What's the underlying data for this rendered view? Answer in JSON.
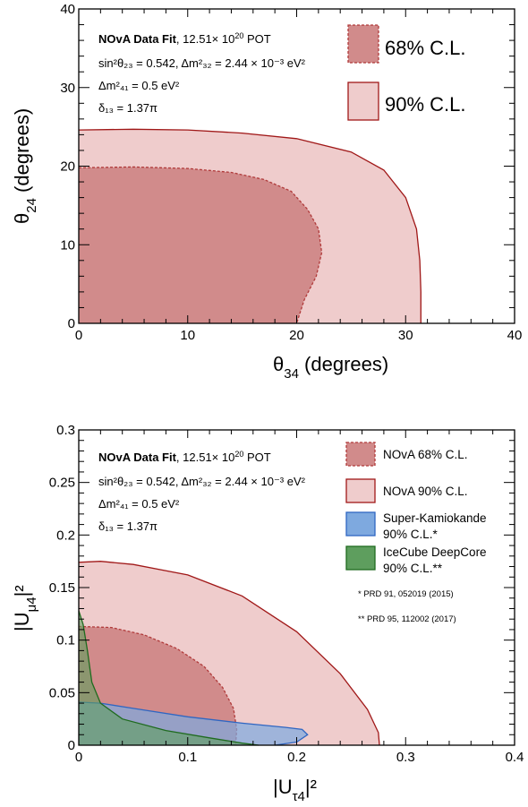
{
  "top": {
    "ann_title_bold": "NOvA Data Fit",
    "ann_title_rest": ", 12.51× 10",
    "ann_title_exp": "20",
    "ann_title_end": " POT",
    "ann_line2": "sin²θ₂₃ = 0.542, Δm²₃₂ = 2.44 × 10⁻³ eV²",
    "ann_line3": "Δm²₄₁ = 0.5 eV²",
    "ann_line4": "δ₁₃ = 1.37π",
    "legend_68": "68% C.L.",
    "legend_90": "90% C.L.",
    "xlabel_main": "θ",
    "xlabel_sub": "34",
    "xlabel_tail": " (degrees)",
    "ylabel_main": "θ",
    "ylabel_sub": "24",
    "ylabel_tail": " (degrees)"
  },
  "bottom": {
    "ann_title_bold": "NOvA Data Fit",
    "ann_title_rest": ", 12.51× 10",
    "ann_title_exp": "20",
    "ann_title_end": " POT",
    "ann_line2": "sin²θ₂₃ = 0.542, Δm²₃₂ = 2.44 × 10⁻³ eV²",
    "ann_line3": "Δm²₄₁ = 0.5 eV²",
    "ann_line4": "δ₁₃ = 1.37π",
    "legend_nova68": "NOvA 68% C.L.",
    "legend_nova90": "NOvA 90% C.L.",
    "legend_sk_1": "Super-Kamiokande",
    "legend_sk_2": "90% C.L.*",
    "legend_ic_1": "IceCube DeepCore",
    "legend_ic_2": "90% C.L.**",
    "ref1": "* PRD 91, 052019 (2015)",
    "ref2": "** PRD 95, 112002 (2017)",
    "xlabel_main": "|U",
    "xlabel_sub": "τ4",
    "xlabel_tail": "|²",
    "ylabel_main": "|U",
    "ylabel_sub": "μ4",
    "ylabel_tail": "|²"
  },
  "colors": {
    "nova68_fill": "#d18b8b",
    "nova68_line": "#b03a3a",
    "nova90_fill": "#efcccc",
    "nova90_line": "#a01818",
    "sk_fill": "#7ea9df",
    "sk_line": "#2f66c2",
    "ic_fill": "#5e9e5e",
    "ic_line": "#1f6b1f"
  },
  "chart_data": [
    {
      "type": "area",
      "xlabel": "θ34 (degrees)",
      "ylabel": "θ24 (degrees)",
      "xlim": [
        0,
        40
      ],
      "ylim": [
        0,
        40
      ],
      "xticks": [
        "0",
        "10",
        "20",
        "30",
        "40"
      ],
      "yticks": [
        "0",
        "10",
        "20",
        "30",
        "40"
      ],
      "series": [
        {
          "name": "90% C.L.",
          "x": [
            0,
            5,
            10,
            15,
            20,
            25,
            28,
            30,
            31,
            31.3,
            31.4,
            31.4
          ],
          "y": [
            24.6,
            24.7,
            24.6,
            24.2,
            23.5,
            21.8,
            19.5,
            16.0,
            12.0,
            8.0,
            4.0,
            0
          ]
        },
        {
          "name": "68% C.L.",
          "x": [
            0,
            5,
            10,
            14,
            17,
            19.5,
            21.0,
            22.0,
            22.3,
            21.8,
            20.7,
            20.0
          ],
          "y": [
            19.8,
            19.9,
            19.7,
            19.2,
            18.3,
            16.8,
            14.5,
            12.0,
            9.0,
            6.0,
            3.0,
            0
          ]
        }
      ]
    },
    {
      "type": "area",
      "xlabel": "|Uτ4|²",
      "ylabel": "|Uμ4|²",
      "xlim": [
        0,
        0.4
      ],
      "ylim": [
        0,
        0.3
      ],
      "xticks": [
        "0",
        "0.1",
        "0.2",
        "0.3",
        "0.4"
      ],
      "yticks": [
        "0",
        "0.05",
        "0.1",
        "0.15",
        "0.2",
        "0.25",
        "0.3"
      ],
      "series": [
        {
          "name": "NOvA 90% C.L.",
          "x": [
            0,
            0.02,
            0.05,
            0.1,
            0.15,
            0.2,
            0.24,
            0.265,
            0.275,
            0.276
          ],
          "y": [
            0.174,
            0.175,
            0.172,
            0.162,
            0.142,
            0.108,
            0.068,
            0.034,
            0.012,
            0
          ]
        },
        {
          "name": "NOvA 68% C.L.",
          "x": [
            0,
            0.03,
            0.06,
            0.09,
            0.115,
            0.132,
            0.142,
            0.145,
            0.144
          ],
          "y": [
            0.113,
            0.112,
            0.105,
            0.092,
            0.075,
            0.055,
            0.035,
            0.015,
            0
          ]
        },
        {
          "name": "Super-Kamiokande 90% C.L.*",
          "x": [
            0,
            0.02,
            0.05,
            0.1,
            0.15,
            0.19,
            0.205,
            0.21,
            0.2,
            0.18
          ],
          "y": [
            0.041,
            0.04,
            0.035,
            0.027,
            0.021,
            0.017,
            0.015,
            0.01,
            0.003,
            0
          ]
        },
        {
          "name": "IceCube DeepCore 90% C.L.**",
          "x": [
            0,
            0.004,
            0.008,
            0.012,
            0.02,
            0.04,
            0.08,
            0.12,
            0.15,
            0.165
          ],
          "y": [
            0.128,
            0.115,
            0.09,
            0.06,
            0.04,
            0.025,
            0.014,
            0.007,
            0.002,
            0
          ]
        }
      ]
    }
  ]
}
